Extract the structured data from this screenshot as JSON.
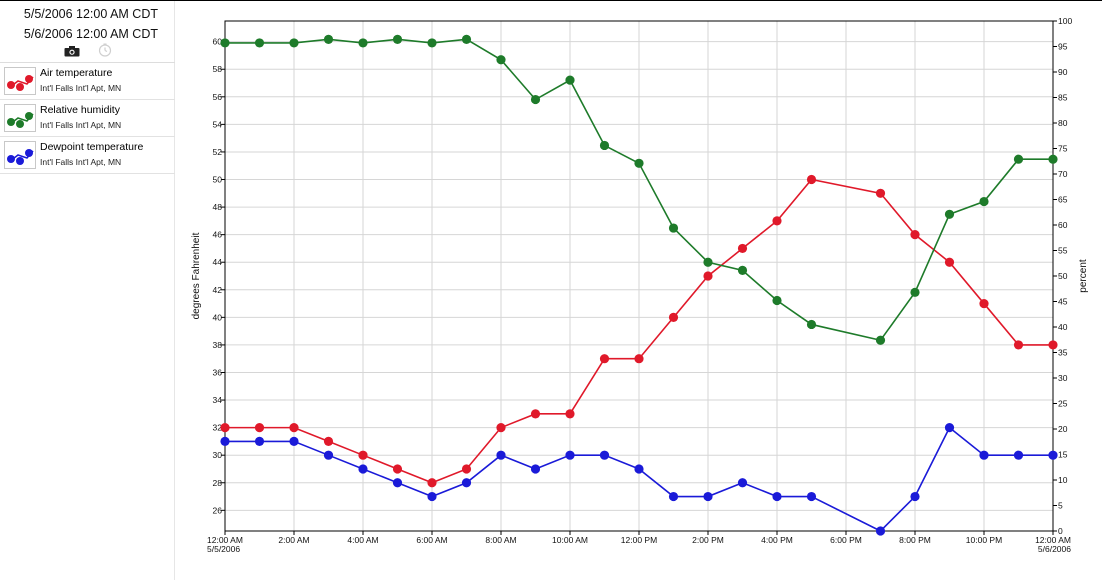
{
  "header": {
    "start_datetime": "5/5/2006 12:00 AM CDT",
    "end_datetime": "5/6/2006 12:00 AM CDT"
  },
  "toolbar": {
    "icons": [
      "camera-icon",
      "clock-icon"
    ]
  },
  "legend": {
    "items": [
      {
        "name": "Air temperature",
        "station": "Int'l Falls Int'l Apt, MN",
        "color": "#e0192a"
      },
      {
        "name": "Relative humidity",
        "station": "Int'l Falls Int'l Apt, MN",
        "color": "#1e7b2a"
      },
      {
        "name": "Dewpoint temperature",
        "station": "Int'l Falls Int'l Apt, MN",
        "color": "#1a1ad8"
      }
    ]
  },
  "chart_data": {
    "type": "line",
    "title": "",
    "xlabel": "",
    "ylabel": "degrees Fahrenheit",
    "y2label": "percent",
    "ylim": [
      24.5,
      61.5
    ],
    "y2lim": [
      0,
      100
    ],
    "yticks": [
      26,
      28,
      30,
      32,
      34,
      36,
      38,
      40,
      42,
      44,
      46,
      48,
      50,
      52,
      54,
      56,
      58,
      60
    ],
    "y2ticks": [
      0,
      5,
      10,
      15,
      20,
      25,
      30,
      35,
      40,
      45,
      50,
      55,
      60,
      65,
      70,
      75,
      80,
      85,
      90,
      95,
      100
    ],
    "x": [
      "12:00 AM",
      "1:00 AM",
      "2:00 AM",
      "3:00 AM",
      "4:00 AM",
      "5:00 AM",
      "6:00 AM",
      "7:00 AM",
      "8:00 AM",
      "9:00 AM",
      "10:00 AM",
      "11:00 AM",
      "12:00 PM",
      "1:00 PM",
      "2:00 PM",
      "3:00 PM",
      "4:00 PM",
      "5:00 PM",
      "7:00 PM",
      "8:00 PM",
      "9:00 PM",
      "10:00 PM",
      "11:00 PM",
      "12:00 AM"
    ],
    "x_hours": [
      0,
      1,
      2,
      3,
      4,
      5,
      6,
      7,
      8,
      9,
      10,
      11,
      12,
      13,
      14,
      15,
      16,
      17,
      19,
      20,
      21,
      22,
      23,
      24
    ],
    "x_tick_labels": [
      {
        "hour": 0,
        "lines": [
          "12:00 AM",
          "5/5/2006"
        ]
      },
      {
        "hour": 2,
        "lines": [
          "2:00 AM"
        ]
      },
      {
        "hour": 4,
        "lines": [
          "4:00 AM"
        ]
      },
      {
        "hour": 6,
        "lines": [
          "6:00 AM"
        ]
      },
      {
        "hour": 8,
        "lines": [
          "8:00 AM"
        ]
      },
      {
        "hour": 10,
        "lines": [
          "10:00 AM"
        ]
      },
      {
        "hour": 12,
        "lines": [
          "12:00 PM"
        ]
      },
      {
        "hour": 14,
        "lines": [
          "2:00 PM"
        ]
      },
      {
        "hour": 16,
        "lines": [
          "4:00 PM"
        ]
      },
      {
        "hour": 18,
        "lines": [
          "6:00 PM"
        ]
      },
      {
        "hour": 20,
        "lines": [
          "8:00 PM"
        ]
      },
      {
        "hour": 22,
        "lines": [
          "10:00 PM"
        ]
      },
      {
        "hour": 24,
        "lines": [
          "12:00 AM",
          "5/6/2006"
        ]
      }
    ],
    "series": [
      {
        "name": "Air temperature",
        "axis": "left",
        "color": "#e0192a",
        "values": [
          32,
          32,
          32,
          31,
          30,
          29,
          28,
          29,
          32,
          33,
          33,
          37,
          37,
          40,
          43,
          45,
          47,
          50,
          49,
          46,
          44,
          41,
          38,
          38
        ]
      },
      {
        "name": "Relative humidity",
        "axis": "right",
        "color": "#1e7b2a",
        "values": [
          95.7,
          95.7,
          95.7,
          96.4,
          95.7,
          96.4,
          95.7,
          96.4,
          92.4,
          84.6,
          88.4,
          75.6,
          72.1,
          59.4,
          52.7,
          51.1,
          45.2,
          40.5,
          37.4,
          46.8,
          62.1,
          64.6,
          72.9,
          72.9
        ]
      },
      {
        "name": "Dewpoint temperature",
        "axis": "left",
        "color": "#1a1ad8",
        "values": [
          31,
          31,
          31,
          30,
          29,
          28,
          27,
          28,
          30,
          29,
          30,
          30,
          29,
          27,
          27,
          28,
          27,
          27,
          24.5,
          27,
          32,
          30,
          30,
          30
        ]
      }
    ],
    "grid": true,
    "legend_position": "left-panel"
  }
}
